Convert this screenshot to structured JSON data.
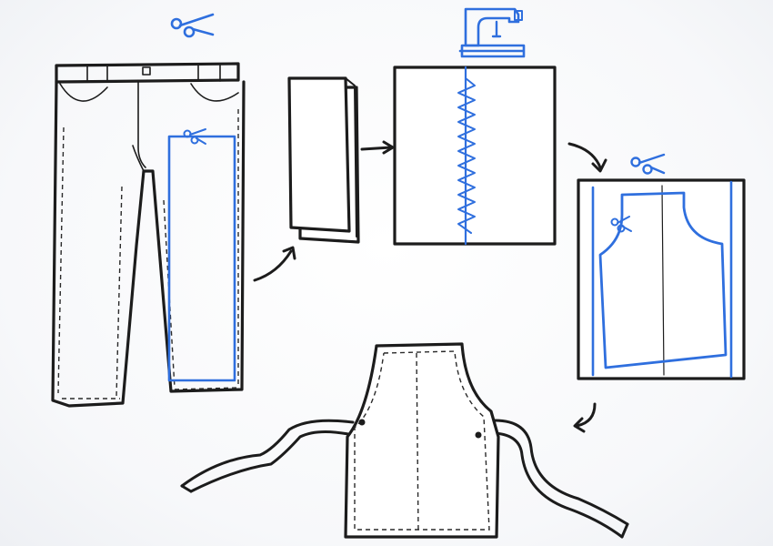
{
  "colors": {
    "ink": "#1c1c1c",
    "accent": "#2f6fde",
    "paper": "#ffffff"
  },
  "icons": {
    "top_scissors": "scissors-icon",
    "sewing_machine": "sewing-machine-icon",
    "cut_scissors": "scissors-icon",
    "arrow": "arrow-icon"
  }
}
